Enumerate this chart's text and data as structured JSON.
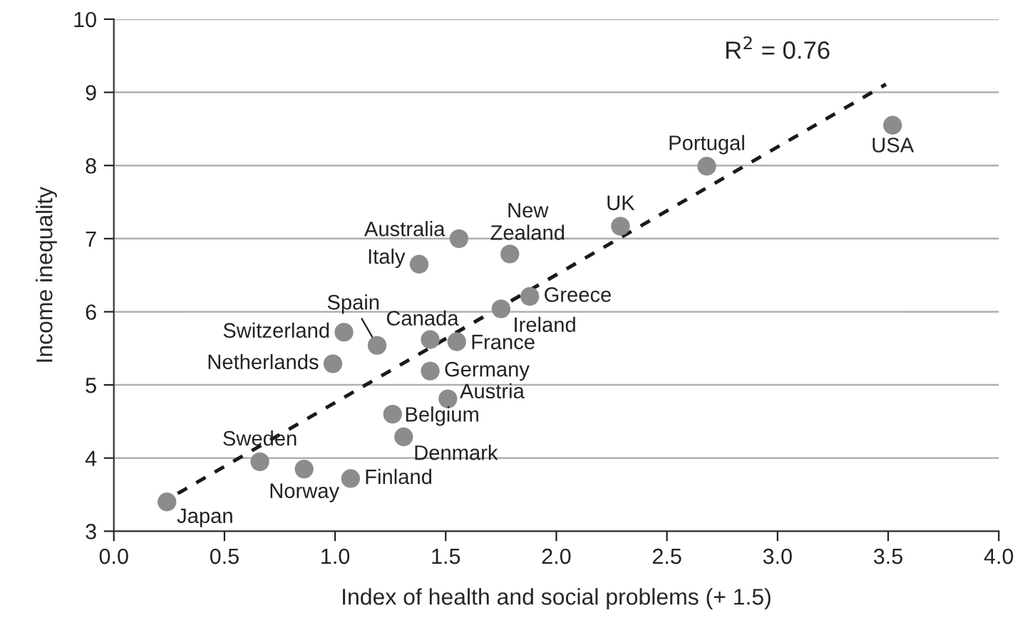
{
  "chart_data": {
    "type": "scatter",
    "xlabel": "Index of health and social problems (+ 1.5)",
    "ylabel": "Income inequality",
    "xlim": [
      0,
      4
    ],
    "ylim": [
      3,
      10
    ],
    "xticks": [
      {
        "value": 0,
        "label": "0.0"
      },
      0.5,
      {
        "value": 1,
        "label": "1.0"
      },
      1.5,
      {
        "value": 2,
        "label": "2.0"
      },
      2.5,
      {
        "value": 3,
        "label": "3.0"
      },
      3.5,
      {
        "value": 4,
        "label": "4.0"
      }
    ],
    "yticks": [
      3,
      4,
      5,
      6,
      7,
      8,
      9,
      10
    ],
    "grid": "y",
    "marker": "circle",
    "series": [
      {
        "color": "#8c8c8c",
        "x": [
          0.24,
          0.66,
          0.86,
          1.07,
          0.99,
          1.04,
          1.19,
          1.38,
          1.56,
          1.79,
          1.43,
          1.55,
          1.43,
          1.51,
          1.26,
          1.31,
          1.75,
          1.88,
          2.29,
          2.68,
          3.52
        ],
        "values": [
          3.4,
          3.95,
          3.85,
          3.72,
          5.29,
          5.72,
          5.54,
          6.65,
          7.0,
          6.79,
          5.62,
          5.59,
          5.19,
          4.81,
          4.6,
          4.29,
          6.04,
          6.21,
          7.17,
          7.99,
          8.55
        ],
        "value_labels": [
          "Japan",
          "Sweden",
          "Norway",
          "Finland",
          "Netherlands",
          "Switzerland",
          "Spain",
          "Italy",
          "Australia",
          "New\nZealand",
          "Canada",
          "France",
          "Germany",
          "Austria",
          "Belgium",
          "Denmark",
          "Ireland",
          "Greece",
          "UK",
          "Portugal",
          "USA"
        ]
      },
      {
        "type": "line",
        "color": "#1a1a1a",
        "line_style": "dashed",
        "marker": "none",
        "x": [
          0.24,
          3.49
        ],
        "values": [
          3.43,
          9.11
        ]
      }
    ],
    "annotations": [
      "R$^{2}$ = 0.76"
    ]
  }
}
